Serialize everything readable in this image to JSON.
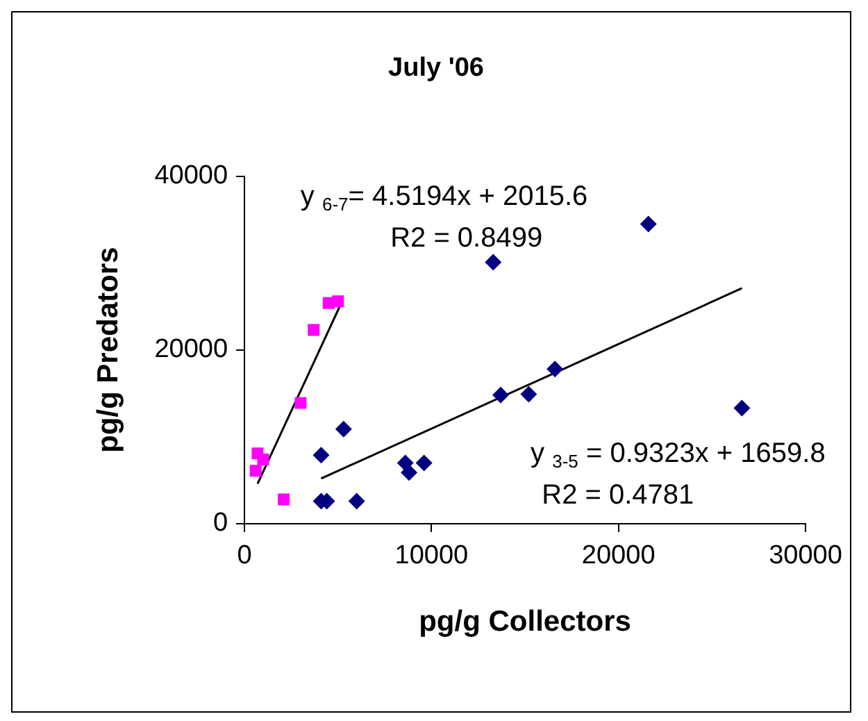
{
  "chart_data": {
    "type": "scatter",
    "title": "July '06",
    "xlabel": "pg/g Collectors",
    "ylabel": "pg/g Predators",
    "xlim": [
      0,
      30000
    ],
    "xticks": [
      0,
      10000,
      20000,
      30000
    ],
    "ylim": [
      0,
      40000
    ],
    "yticks": [
      0,
      20000,
      40000
    ],
    "grid": false,
    "legend": false,
    "series": [
      {
        "type": "scatter",
        "marker": "square",
        "color": "#ff00ff",
        "x": [
          700,
          1000,
          600,
          2100,
          3000,
          3700,
          4500,
          5000
        ],
        "values": [
          8100,
          7400,
          6100,
          2800,
          13900,
          22300,
          25400,
          25600
        ]
      },
      {
        "type": "scatter",
        "marker": "diamond",
        "color": "#000080",
        "x": [
          4100,
          5300,
          4100,
          4400,
          6000,
          8600,
          8800,
          9600,
          13300,
          13700,
          15200,
          16600,
          21600,
          26600
        ],
        "values": [
          7900,
          10900,
          2600,
          2600,
          2600,
          7000,
          5900,
          7000,
          30100,
          14800,
          14900,
          17800,
          34500,
          13300
        ]
      },
      {
        "type": "line",
        "marker": "none",
        "color": "#000000",
        "x": [
          700,
          5200
        ],
        "values": [
          4600,
          25500
        ]
      },
      {
        "type": "line",
        "marker": "none",
        "color": "#000000",
        "x": [
          4100,
          26600
        ],
        "values": [
          5200,
          27100
        ]
      }
    ],
    "annotations": [
      "y $_{6-7}$= 4.5194x + 2015.6",
      "R2 = 0.8499",
      "y $_{3-5}$ = 0.9323x + 1659.8",
      "R2 = 0.4781"
    ]
  }
}
